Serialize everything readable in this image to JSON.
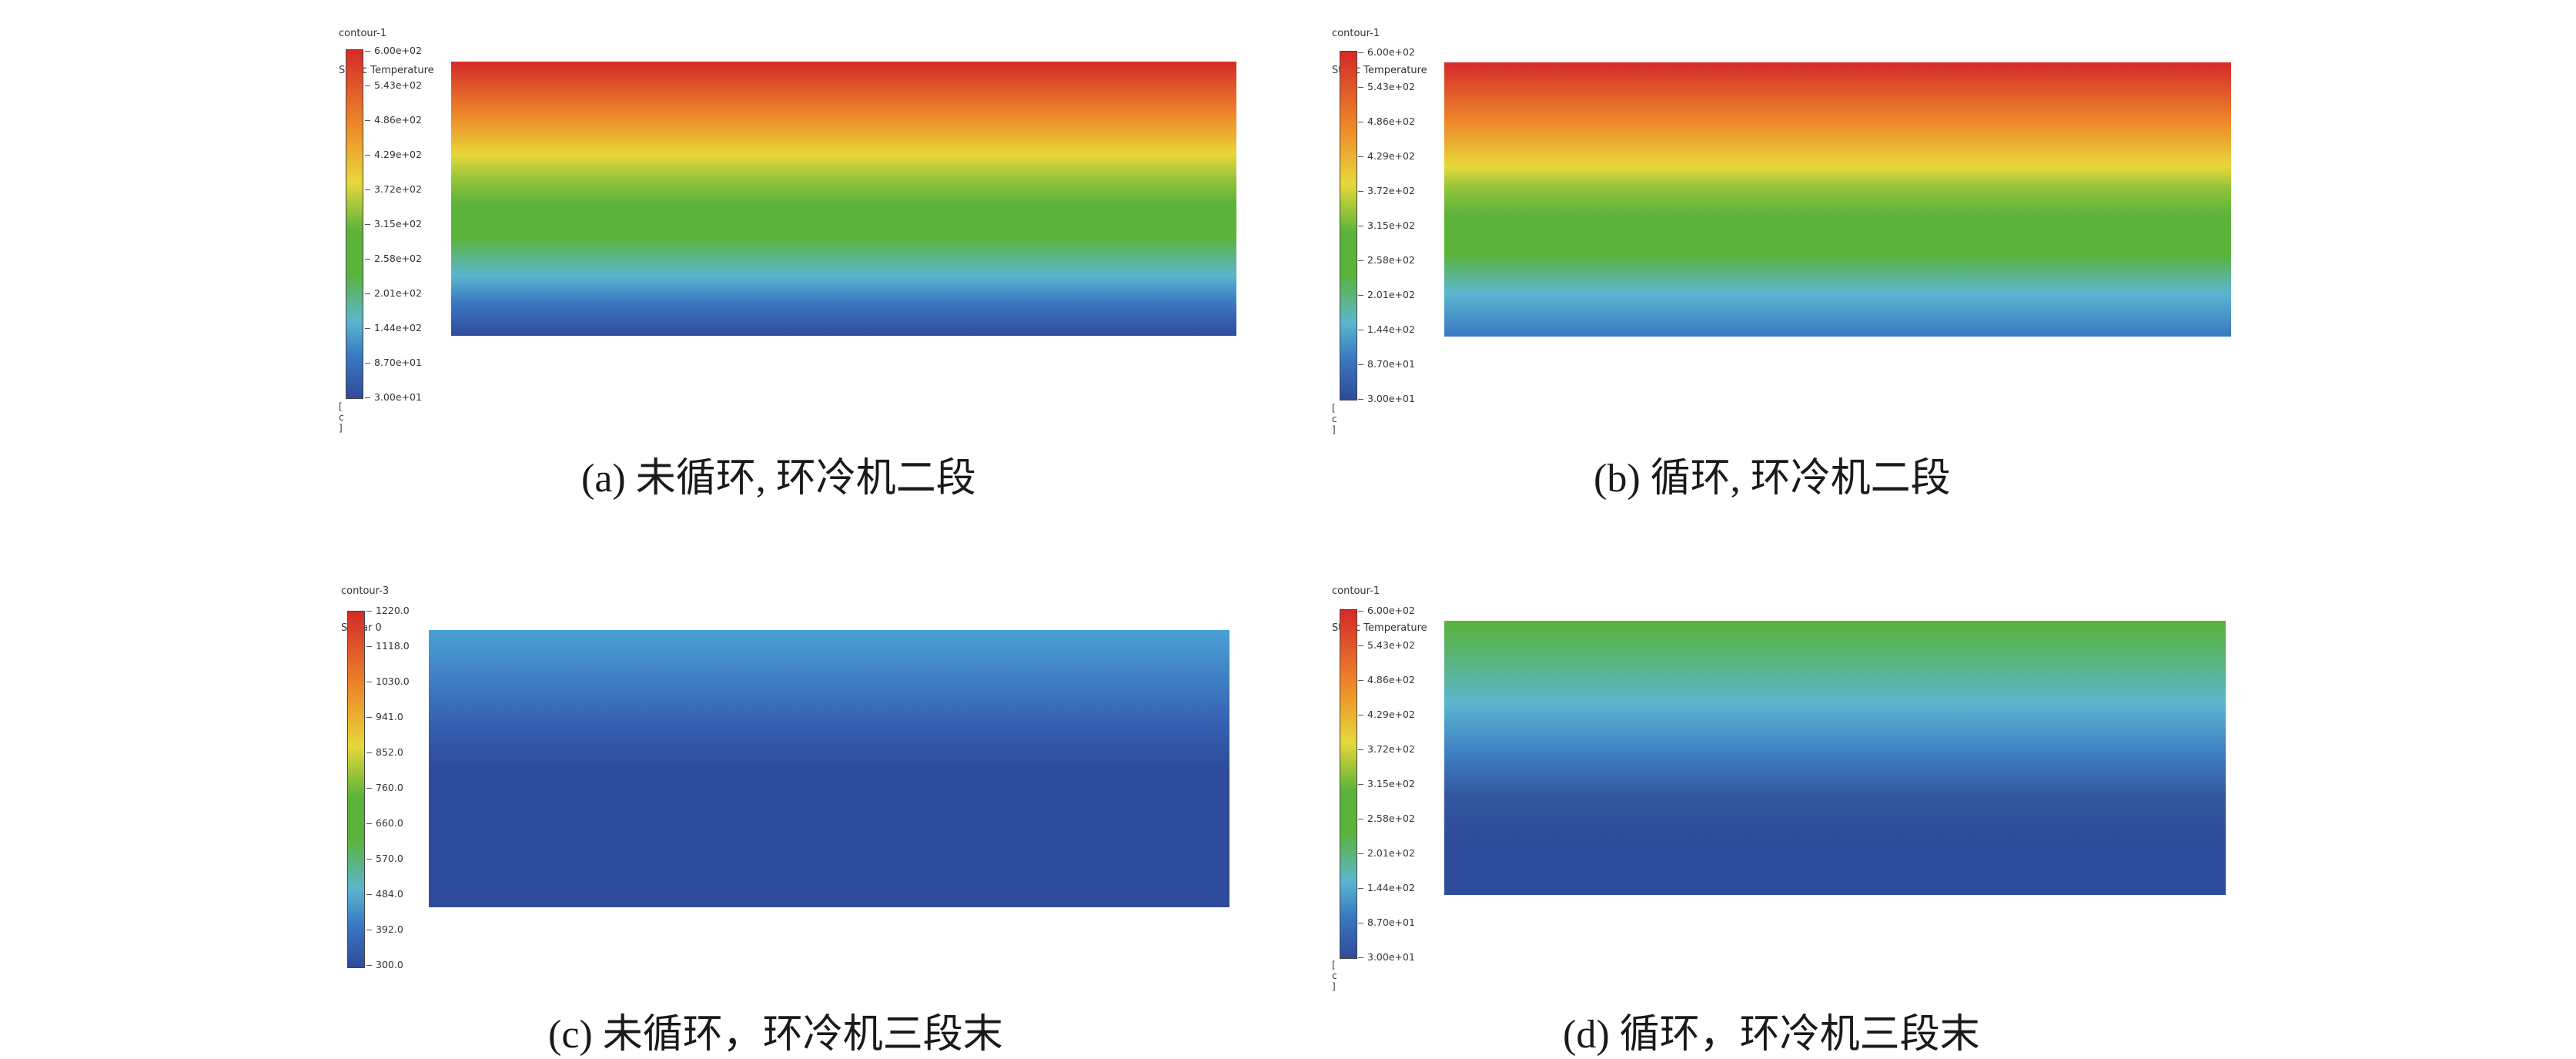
{
  "panels": [
    {
      "id": "a",
      "header": [
        "contour-1",
        "Static Temperature"
      ],
      "ticks": [
        "6.00e+02",
        "5.43e+02",
        "4.86e+02",
        "4.29e+02",
        "3.72e+02",
        "3.15e+02",
        "2.58e+02",
        "2.01e+02",
        "1.44e+02",
        "8.70e+01",
        "3.00e+01"
      ],
      "unit": "[ c ]",
      "caption": "(a) 未循环, 环冷机二段"
    },
    {
      "id": "b",
      "header": [
        "contour-1",
        "Static Temperature"
      ],
      "ticks": [
        "6.00e+02",
        "5.43e+02",
        "4.86e+02",
        "4.29e+02",
        "3.72e+02",
        "3.15e+02",
        "2.58e+02",
        "2.01e+02",
        "1.44e+02",
        "8.70e+01",
        "3.00e+01"
      ],
      "unit": "[ c ]",
      "caption": "(b) 循环, 环冷机二段"
    },
    {
      "id": "c",
      "header": [
        "contour-3",
        "Scalar 0"
      ],
      "ticks": [
        "1220.0",
        "1118.0",
        "1030.0",
        "941.0",
        "852.0",
        "760.0",
        "660.0",
        "570.0",
        "484.0",
        "392.0",
        "300.0"
      ],
      "unit": "",
      "caption": "(c) 未循环，环冷机三段末"
    },
    {
      "id": "d",
      "header": [
        "contour-1",
        "Static Temperature"
      ],
      "ticks": [
        "6.00e+02",
        "5.43e+02",
        "4.86e+02",
        "4.29e+02",
        "3.72e+02",
        "3.15e+02",
        "2.58e+02",
        "2.01e+02",
        "1.44e+02",
        "8.70e+01",
        "3.00e+01"
      ],
      "unit": "[ c ]",
      "caption": "(d) 循环，环冷机三段末"
    }
  ],
  "colors": {
    "red": "#d42a2a",
    "orange": "#ee8a2a",
    "yellow": "#e7d83a",
    "green": "#5bb33a",
    "cyan": "#5bb6cf",
    "blue": "#2f4b9b"
  }
}
